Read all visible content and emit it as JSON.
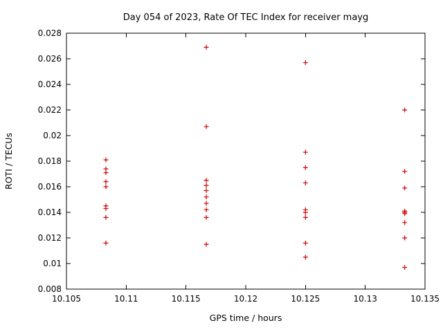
{
  "chart_data": {
    "type": "scatter",
    "title": "Day 054 of 2023, Rate Of TEC Index for receiver mayg",
    "xlabel": "GPS time / hours",
    "ylabel": "ROTI / TECUs",
    "xlim": [
      10.105,
      10.135
    ],
    "ylim": [
      0.008,
      0.028
    ],
    "grid": false,
    "legend": "none",
    "xticks": {
      "values": [
        10.105,
        10.11,
        10.115,
        10.12,
        10.125,
        10.13,
        10.135
      ],
      "labels": [
        "10.105",
        "10.11",
        "10.115",
        "10.12",
        "10.125",
        "10.13",
        "10.135"
      ]
    },
    "yticks": {
      "values": [
        0.008,
        0.01,
        0.012,
        0.014,
        0.016,
        0.018,
        0.02,
        0.022,
        0.024,
        0.026,
        0.028
      ],
      "labels": [
        "0.008",
        "0.01",
        "0.012",
        "0.014",
        "0.016",
        "0.018",
        "0.02",
        "0.022",
        "0.024",
        "0.026",
        "0.028"
      ]
    },
    "marker": {
      "shape": "plus",
      "color": "#cc0000",
      "size": 7
    },
    "series": [
      {
        "name": "ROTI",
        "points": [
          [
            10.1083,
            0.0181
          ],
          [
            10.1083,
            0.0174
          ],
          [
            10.1083,
            0.0171
          ],
          [
            10.1083,
            0.0164
          ],
          [
            10.1083,
            0.016
          ],
          [
            10.1083,
            0.0145
          ],
          [
            10.1083,
            0.0143
          ],
          [
            10.1083,
            0.0136
          ],
          [
            10.1083,
            0.0116
          ],
          [
            10.1167,
            0.0269
          ],
          [
            10.1167,
            0.0207
          ],
          [
            10.1167,
            0.0165
          ],
          [
            10.1167,
            0.0161
          ],
          [
            10.1167,
            0.0157
          ],
          [
            10.1167,
            0.0152
          ],
          [
            10.1167,
            0.0147
          ],
          [
            10.1167,
            0.0142
          ],
          [
            10.1167,
            0.0136
          ],
          [
            10.1167,
            0.0115
          ],
          [
            10.125,
            0.0257
          ],
          [
            10.125,
            0.0187
          ],
          [
            10.125,
            0.0175
          ],
          [
            10.125,
            0.0163
          ],
          [
            10.125,
            0.0142
          ],
          [
            10.125,
            0.014
          ],
          [
            10.125,
            0.0136
          ],
          [
            10.125,
            0.0116
          ],
          [
            10.125,
            0.0105
          ],
          [
            10.1333,
            0.022
          ],
          [
            10.1333,
            0.0172
          ],
          [
            10.1333,
            0.0159
          ],
          [
            10.1333,
            0.0141
          ],
          [
            10.1333,
            0.014
          ],
          [
            10.1333,
            0.0139
          ],
          [
            10.1333,
            0.0132
          ],
          [
            10.1333,
            0.012
          ],
          [
            10.1333,
            0.0097
          ]
        ]
      }
    ]
  },
  "frame": {
    "background": "#ffffff",
    "border_color": "#000000",
    "text_color": "#000000",
    "tick_length": 6
  }
}
